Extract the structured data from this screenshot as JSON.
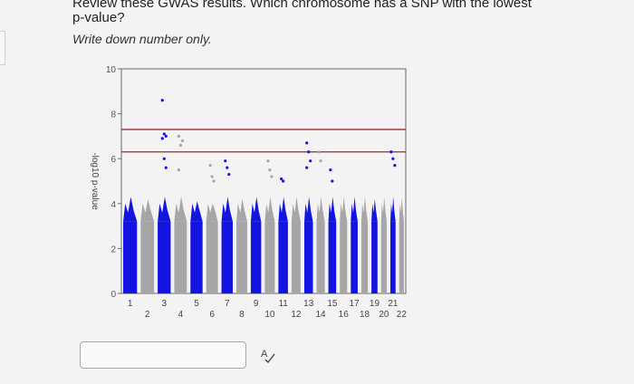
{
  "question": {
    "text": "Review these GWAS results. Which chromosome has a SNP with the lowest p-value?",
    "instruction": "Write down number only."
  },
  "answer": {
    "value": "",
    "placeholder": ""
  },
  "icons": {
    "spell_check": "spell-check-icon"
  },
  "colors": {
    "blue": "#1414e0",
    "grey": "#a6a6a6",
    "threshold": "#9c2a2a"
  },
  "chart_data": {
    "type": "scatter",
    "title": "",
    "xlabel": "",
    "ylabel": "-log10 p-value",
    "ylim": [
      0,
      10
    ],
    "yticks": [
      0,
      2,
      4,
      6,
      8,
      10
    ],
    "thresholds": [
      7.3,
      6.3
    ],
    "categories": [
      "1",
      "2",
      "3",
      "4",
      "5",
      "6",
      "7",
      "8",
      "9",
      "10",
      "11",
      "12",
      "13",
      "14",
      "15",
      "16",
      "17",
      "18",
      "19",
      "20",
      "21",
      "22"
    ],
    "tick_labels_upper": [
      "1",
      "3",
      "5",
      "7",
      "9",
      "11",
      "13",
      "15",
      "17",
      "19",
      "21"
    ],
    "tick_labels_lower": [
      "2",
      "4",
      "6",
      "8",
      "10",
      "12",
      "14",
      "16",
      "18",
      "20",
      "22"
    ],
    "series": [
      {
        "values": [
          4.6,
          4.2,
          8.5,
          5.0,
          4.1,
          4.0,
          5.1,
          4.2,
          4.6,
          4.8,
          4.9,
          4.7,
          4.5,
          4.6,
          4.4,
          4.5,
          4.3,
          4.3,
          4.2,
          4.4,
          4.3,
          4.3
        ]
      }
    ],
    "outliers": [
      {
        "chr": 3,
        "values": [
          8.6,
          7.1,
          7.0,
          6.9,
          6.0,
          5.6
        ]
      },
      {
        "chr": 4,
        "values": [
          7.0,
          6.6,
          6.8,
          5.5
        ]
      },
      {
        "chr": 6,
        "values": [
          5.7,
          5.2,
          5.0
        ]
      },
      {
        "chr": 7,
        "values": [
          5.9,
          5.6,
          5.3
        ]
      },
      {
        "chr": 10,
        "values": [
          5.9,
          5.5,
          5.2
        ]
      },
      {
        "chr": 11,
        "values": [
          5.1,
          5.0
        ]
      },
      {
        "chr": 13,
        "values": [
          6.7,
          6.3,
          5.9,
          5.6
        ]
      },
      {
        "chr": 14,
        "values": [
          6.3,
          5.9
        ]
      },
      {
        "chr": 15,
        "values": [
          5.5,
          5.0
        ]
      },
      {
        "chr": 21,
        "values": [
          6.3,
          6.0,
          5.7
        ]
      }
    ]
  }
}
